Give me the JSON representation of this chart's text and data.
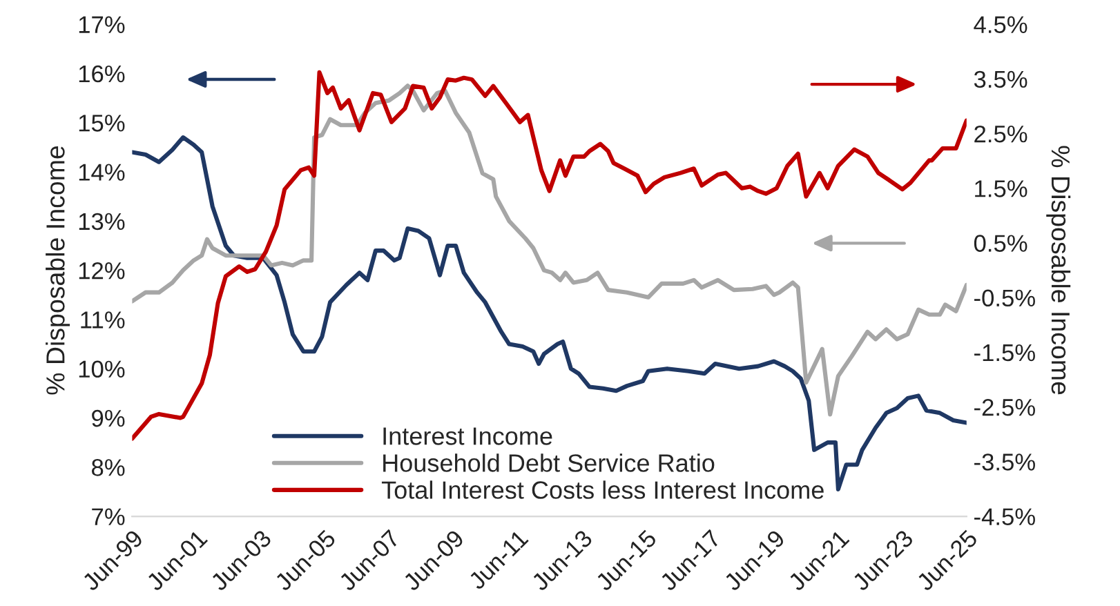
{
  "chart_data": {
    "type": "line",
    "ylabel": "% Disposable Income",
    "y2label": "% Disposable Income",
    "xlim": [
      "1999-06",
      "2025-06"
    ],
    "xticks": [
      {
        "value": "1999-06",
        "label": "Jun-99"
      },
      {
        "value": "2001-06",
        "label": "Jun-01"
      },
      {
        "value": "2003-06",
        "label": "Jun-03"
      },
      {
        "value": "2005-06",
        "label": "Jun-05"
      },
      {
        "value": "2007-06",
        "label": "Jun-07"
      },
      {
        "value": "2009-06",
        "label": "Jun-09"
      },
      {
        "value": "2011-06",
        "label": "Jun-11"
      },
      {
        "value": "2013-06",
        "label": "Jun-13"
      },
      {
        "value": "2015-06",
        "label": "Jun-15"
      },
      {
        "value": "2017-06",
        "label": "Jun-17"
      },
      {
        "value": "2019-06",
        "label": "Jun-19"
      },
      {
        "value": "2021-06",
        "label": "Jun-21"
      },
      {
        "value": "2023-06",
        "label": "Jun-23"
      },
      {
        "value": "2025-06",
        "label": "Jun-25"
      }
    ],
    "ylim": [
      7,
      17
    ],
    "yticks": [
      {
        "value": 7,
        "label": "7%"
      },
      {
        "value": 8,
        "label": "8%"
      },
      {
        "value": 9,
        "label": "9%"
      },
      {
        "value": 10,
        "label": "10%"
      },
      {
        "value": 11,
        "label": "11%"
      },
      {
        "value": 12,
        "label": "12%"
      },
      {
        "value": 13,
        "label": "13%"
      },
      {
        "value": 14,
        "label": "14%"
      },
      {
        "value": 15,
        "label": "15%"
      },
      {
        "value": 16,
        "label": "16%"
      },
      {
        "value": 17,
        "label": "17%"
      }
    ],
    "y2lim": [
      -4.5,
      4.5
    ],
    "y2ticks": [
      {
        "value": -4.5,
        "label": "-4.5%"
      },
      {
        "value": -3.5,
        "label": "-3.5%"
      },
      {
        "value": -2.5,
        "label": "-2.5%"
      },
      {
        "value": -1.5,
        "label": "-1.5%"
      },
      {
        "value": -0.5,
        "label": "-0.5%"
      },
      {
        "value": 0.5,
        "label": "0.5%"
      },
      {
        "value": 1.5,
        "label": "1.5%"
      },
      {
        "value": 2.5,
        "label": "2.5%"
      },
      {
        "value": 3.5,
        "label": "3.5%"
      },
      {
        "value": 4.5,
        "label": "4.5%"
      }
    ],
    "legend": "bottom",
    "grid": false,
    "marker": "none",
    "line_style": "solid",
    "series": [
      {
        "name": "Interest Income",
        "color": "#1f3864",
        "axis": "y",
        "x": [
          "1999-06",
          "1999-11",
          "2000-04",
          "2000-09",
          "2001-01",
          "2001-05",
          "2001-08",
          "2001-12",
          "2002-05",
          "2002-08",
          "2003-01",
          "2003-07",
          "2003-12",
          "2004-03",
          "2004-06",
          "2004-10",
          "2005-02",
          "2005-05",
          "2005-08",
          "2006-02",
          "2006-07",
          "2006-10",
          "2007-01",
          "2007-04",
          "2007-08",
          "2007-10",
          "2008-01",
          "2008-05",
          "2008-09",
          "2009-01",
          "2009-04",
          "2009-07",
          "2009-10",
          "2010-03",
          "2010-06",
          "2010-12",
          "2011-03",
          "2011-08",
          "2011-12",
          "2012-02",
          "2012-04",
          "2012-09",
          "2012-11",
          "2013-02",
          "2013-05",
          "2013-09",
          "2014-02",
          "2014-07",
          "2014-11",
          "2015-05",
          "2015-07",
          "2016-02",
          "2016-10",
          "2017-04",
          "2017-08",
          "2018-05",
          "2018-12",
          "2019-06",
          "2019-10",
          "2020-01",
          "2020-04",
          "2020-07",
          "2020-09",
          "2021-02",
          "2021-05",
          "2021-06",
          "2021-09",
          "2022-01",
          "2022-03",
          "2022-08",
          "2022-12",
          "2023-04",
          "2023-08",
          "2023-12",
          "2024-03",
          "2024-08",
          "2025-01",
          "2025-06"
        ],
        "values": [
          14.4,
          14.35,
          14.2,
          14.45,
          14.7,
          14.55,
          14.4,
          13.3,
          12.5,
          12.3,
          12.25,
          12.25,
          11.9,
          11.35,
          10.7,
          10.35,
          10.35,
          10.65,
          11.35,
          11.7,
          11.95,
          11.8,
          12.4,
          12.4,
          12.2,
          12.25,
          12.85,
          12.8,
          12.65,
          11.9,
          12.5,
          12.5,
          11.95,
          11.55,
          11.35,
          10.75,
          10.5,
          10.45,
          10.35,
          10.1,
          10.3,
          10.5,
          10.55,
          10.0,
          9.9,
          9.63,
          9.6,
          9.55,
          9.65,
          9.75,
          9.95,
          10.0,
          9.95,
          9.9,
          10.1,
          10.0,
          10.05,
          10.15,
          10.05,
          9.95,
          9.8,
          9.35,
          8.35,
          8.5,
          8.5,
          7.55,
          8.05,
          8.05,
          8.35,
          8.8,
          9.1,
          9.2,
          9.4,
          9.45,
          9.15,
          9.1,
          8.95,
          8.9
        ]
      },
      {
        "name": "Household Debt Service Ratio",
        "color": "#a6a6a6",
        "axis": "y",
        "x": [
          "1999-06",
          "1999-11",
          "2000-04",
          "2000-09",
          "2001-01",
          "2001-05",
          "2001-08",
          "2001-10",
          "2001-12",
          "2002-05",
          "2002-11",
          "2003-07",
          "2003-10",
          "2004-02",
          "2004-06",
          "2004-10",
          "2005-01",
          "2005-02",
          "2005-05",
          "2005-08",
          "2005-12",
          "2006-06",
          "2006-09",
          "2007-01",
          "2007-06",
          "2007-10",
          "2008-01",
          "2008-03",
          "2008-07",
          "2008-12",
          "2009-03",
          "2009-07",
          "2009-12",
          "2010-05",
          "2010-09",
          "2010-10",
          "2011-03",
          "2011-09",
          "2011-12",
          "2012-04",
          "2012-07",
          "2012-10",
          "2012-12",
          "2013-03",
          "2013-08",
          "2013-12",
          "2014-04",
          "2014-11",
          "2015-07",
          "2015-12",
          "2016-08",
          "2016-12",
          "2017-03",
          "2017-09",
          "2018-03",
          "2018-10",
          "2019-03",
          "2019-06",
          "2019-08",
          "2020-01",
          "2020-03",
          "2020-06",
          "2020-12",
          "2021-03",
          "2021-06",
          "2021-11",
          "2022-05",
          "2022-08",
          "2022-12",
          "2023-04",
          "2023-08",
          "2023-12",
          "2024-04",
          "2024-08",
          "2024-10",
          "2025-02",
          "2025-06"
        ],
        "values": [
          11.37,
          11.55,
          11.55,
          11.75,
          12.0,
          12.2,
          12.3,
          12.63,
          12.45,
          12.3,
          12.3,
          12.3,
          12.1,
          12.15,
          12.1,
          12.2,
          12.2,
          14.7,
          14.75,
          15.07,
          14.95,
          14.95,
          15.2,
          15.4,
          15.45,
          15.6,
          15.75,
          15.65,
          15.25,
          15.6,
          15.65,
          15.2,
          14.8,
          13.97,
          13.85,
          13.5,
          13.0,
          12.65,
          12.45,
          12.0,
          11.95,
          11.8,
          11.95,
          11.75,
          11.8,
          11.95,
          11.6,
          11.55,
          11.45,
          11.73,
          11.73,
          11.8,
          11.65,
          11.8,
          11.6,
          11.62,
          11.68,
          11.5,
          11.55,
          11.75,
          11.65,
          9.72,
          10.4,
          9.07,
          9.85,
          10.25,
          10.75,
          10.6,
          10.8,
          10.6,
          10.7,
          11.2,
          11.1,
          11.1,
          11.3,
          11.17,
          11.7
        ]
      },
      {
        "name": "Total Interest Costs less Interest Income",
        "color": "#c00000",
        "axis": "y2",
        "x": [
          "1999-06",
          "2000-01",
          "2000-04",
          "2000-12",
          "2001-01",
          "2001-08",
          "2001-11",
          "2002-02",
          "2002-05",
          "2002-10",
          "2003-01",
          "2003-04",
          "2003-08",
          "2003-12",
          "2004-03",
          "2004-09",
          "2004-12",
          "2005-02",
          "2005-04",
          "2005-07",
          "2005-09",
          "2005-12",
          "2006-03",
          "2006-07",
          "2006-12",
          "2007-03",
          "2007-07",
          "2007-12",
          "2008-03",
          "2008-07",
          "2008-10",
          "2009-01",
          "2009-04",
          "2009-07",
          "2009-10",
          "2010-01",
          "2010-06",
          "2010-09",
          "2011-02",
          "2011-07",
          "2011-10",
          "2012-03",
          "2012-06",
          "2012-10",
          "2012-12",
          "2013-03",
          "2013-07",
          "2013-09",
          "2014-01",
          "2014-04",
          "2014-06",
          "2014-10",
          "2015-03",
          "2015-06",
          "2015-09",
          "2016-01",
          "2016-07",
          "2016-12",
          "2017-03",
          "2017-09",
          "2017-12",
          "2018-06",
          "2018-09",
          "2018-12",
          "2019-03",
          "2019-07",
          "2019-11",
          "2020-03",
          "2020-06",
          "2020-11",
          "2021-02",
          "2021-06",
          "2021-12",
          "2022-05",
          "2022-09",
          "2023-01",
          "2023-06",
          "2023-09",
          "2024-04",
          "2024-05",
          "2024-09",
          "2025-02",
          "2025-06"
        ],
        "values": [
          -3.08,
          -2.68,
          -2.63,
          -2.7,
          -2.68,
          -2.07,
          -1.55,
          -0.6,
          -0.11,
          0.07,
          -0.03,
          0.02,
          0.34,
          0.82,
          1.48,
          1.83,
          1.88,
          1.73,
          3.62,
          3.24,
          3.34,
          2.96,
          3.11,
          2.56,
          3.24,
          3.21,
          2.71,
          2.96,
          3.37,
          3.34,
          2.96,
          3.16,
          3.49,
          3.47,
          3.52,
          3.49,
          3.19,
          3.37,
          3.04,
          2.71,
          2.84,
          1.83,
          1.45,
          2.01,
          1.73,
          2.08,
          2.08,
          2.18,
          2.31,
          2.18,
          1.96,
          1.86,
          1.73,
          1.43,
          1.58,
          1.7,
          1.78,
          1.86,
          1.55,
          1.75,
          1.78,
          1.5,
          1.53,
          1.45,
          1.4,
          1.5,
          1.91,
          2.13,
          1.35,
          1.78,
          1.5,
          1.91,
          2.21,
          2.08,
          1.78,
          1.65,
          1.48,
          1.6,
          2.01,
          2.01,
          2.23,
          2.23,
          2.74
        ]
      }
    ]
  }
}
